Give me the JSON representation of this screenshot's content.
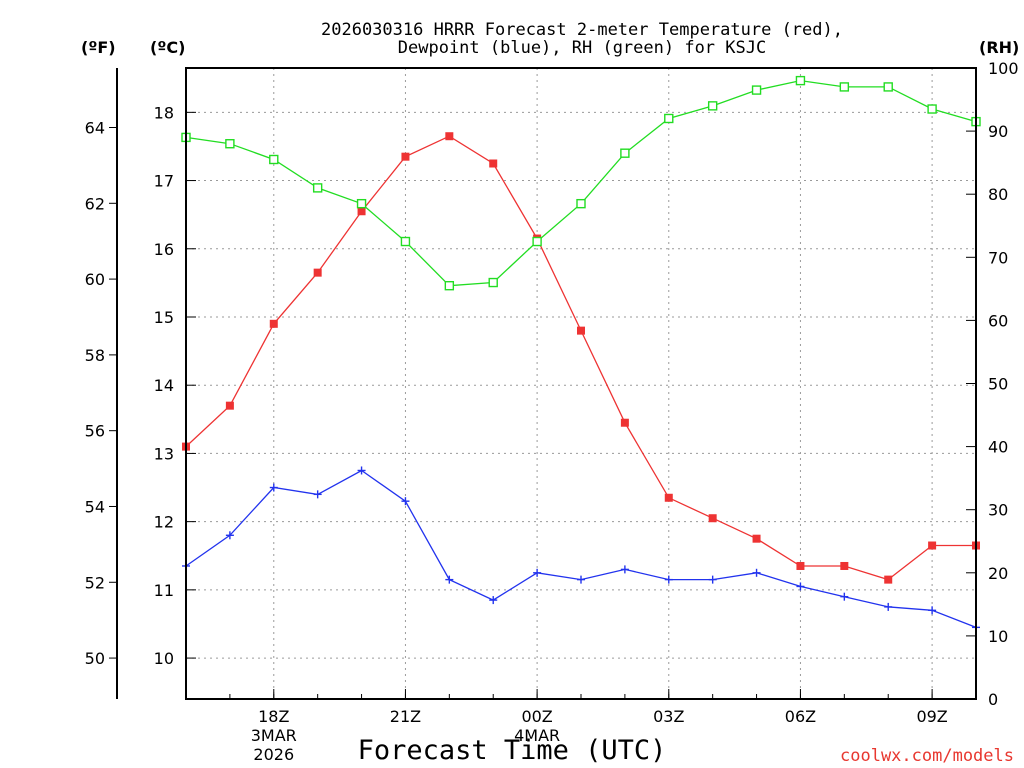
{
  "chart_data": {
    "type": "line",
    "title_lines": [
      "2026030316 HRRR Forecast 2-meter Temperature (red),",
      "Dewpoint (blue), RH (green) for KSJC"
    ],
    "unit_labels": {
      "fahrenheit": "(ºF)",
      "celsius": "(ºC)",
      "rh": "(RH)"
    },
    "xlabel": "Forecast Time (UTC)",
    "credit": "coolwx.com/models",
    "hours": [
      16,
      17,
      18,
      19,
      20,
      21,
      22,
      23,
      24,
      25,
      26,
      27,
      28,
      29,
      30,
      31,
      32,
      33,
      34
    ],
    "x_range_hours": [
      16,
      34
    ],
    "x_ticks": [
      {
        "hour": 18,
        "lines": [
          "18Z",
          "3MAR",
          "2026"
        ]
      },
      {
        "hour": 21,
        "lines": [
          "21Z"
        ]
      },
      {
        "hour": 24,
        "lines": [
          "00Z",
          "4MAR"
        ]
      },
      {
        "hour": 27,
        "lines": [
          "03Z"
        ]
      },
      {
        "hour": 30,
        "lines": [
          "06Z"
        ]
      },
      {
        "hour": 33,
        "lines": [
          "09Z"
        ]
      }
    ],
    "celsius_axis": {
      "range": [
        9.4,
        18.65
      ],
      "ticks": [
        10,
        11,
        12,
        13,
        14,
        15,
        16,
        17,
        18
      ]
    },
    "fahrenheit_axis": {
      "ticks": [
        50,
        52,
        54,
        56,
        58,
        60,
        62,
        64
      ]
    },
    "rh_axis": {
      "range": [
        0,
        100
      ],
      "ticks": [
        0,
        10,
        20,
        30,
        40,
        50,
        60,
        70,
        80,
        90,
        100
      ]
    },
    "series": [
      {
        "name": "2-meter Temperature",
        "color": "#ee3333",
        "marker": "filled-square",
        "axis": "celsius",
        "values": [
          13.1,
          13.7,
          14.9,
          15.65,
          16.55,
          17.35,
          17.65,
          17.25,
          16.15,
          14.8,
          13.45,
          12.35,
          12.05,
          11.75,
          11.35,
          11.35,
          11.15,
          11.65,
          11.65
        ]
      },
      {
        "name": "Dewpoint",
        "color": "#2233ee",
        "marker": "plus",
        "axis": "celsius",
        "values": [
          11.35,
          11.8,
          12.5,
          12.4,
          12.75,
          12.3,
          11.15,
          10.85,
          11.25,
          11.15,
          11.3,
          11.15,
          11.15,
          11.25,
          11.05,
          10.9,
          10.75,
          10.7,
          10.45
        ]
      },
      {
        "name": "RH",
        "color": "#22dd22",
        "marker": "open-square",
        "axis": "rh",
        "values": [
          89,
          88,
          85.5,
          81,
          78.5,
          72.5,
          65.5,
          66,
          72.5,
          78.5,
          86.5,
          92,
          94,
          96.5,
          98,
          97,
          97,
          93.5,
          91.5
        ]
      }
    ]
  }
}
